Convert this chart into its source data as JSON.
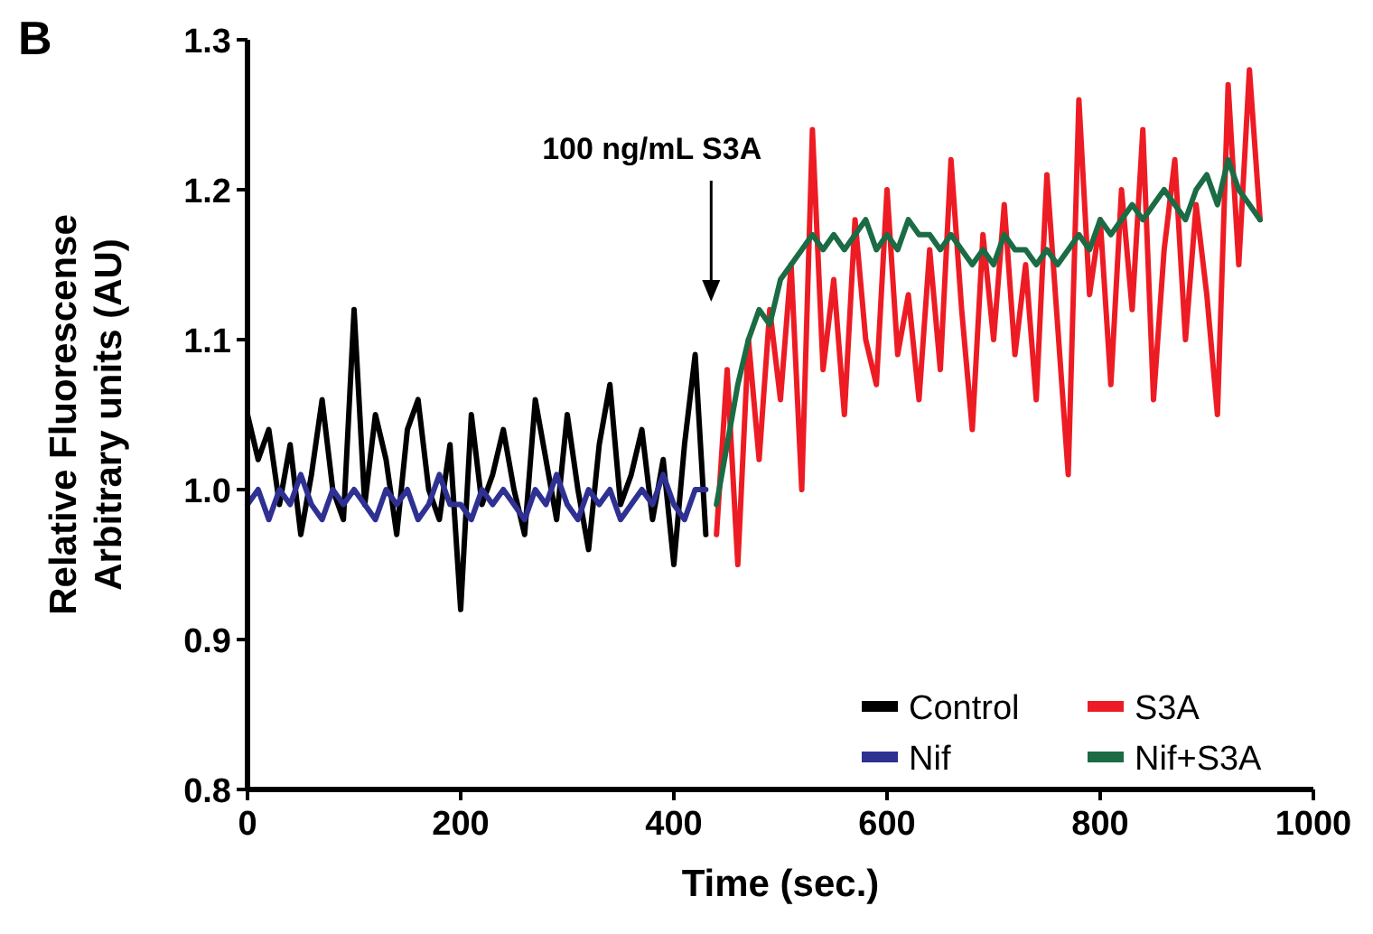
{
  "chart_data": {
    "type": "line",
    "xlabel": "Time (sec.)",
    "ylabel": "Relative Fluorescense\nArbitrary units (AU)",
    "xlim": [
      0,
      1000
    ],
    "ylim": [
      0.8,
      1.3
    ],
    "xticks": [
      0,
      200,
      400,
      600,
      800,
      1000
    ],
    "yticks": [
      {
        "value": 0.8,
        "label": "0.8"
      },
      {
        "value": 0.9,
        "label": "0.9"
      },
      {
        "value": 1.0,
        "label": "1.0"
      },
      {
        "value": 1.1,
        "label": "1.1"
      },
      {
        "value": 1.2,
        "label": "1.2"
      },
      {
        "value": 1.3,
        "label": "1.3"
      }
    ],
    "grid": false,
    "legend": "bottom right",
    "marker": "none",
    "line_style": "solid",
    "annotations": [
      "B",
      "100 ng/mL S3A"
    ],
    "series": [
      {
        "name": "Control",
        "color": "#000000",
        "x": [
          0,
          10,
          20,
          30,
          40,
          50,
          60,
          70,
          80,
          90,
          100,
          110,
          120,
          130,
          140,
          150,
          160,
          170,
          180,
          190,
          200,
          210,
          220,
          230,
          240,
          250,
          260,
          270,
          280,
          290,
          300,
          310,
          320,
          330,
          340,
          350,
          360,
          370,
          380,
          390,
          400,
          410,
          420,
          430
        ],
        "values": [
          1.05,
          1.02,
          1.04,
          0.99,
          1.03,
          0.97,
          1.01,
          1.06,
          1.0,
          0.98,
          1.12,
          0.99,
          1.05,
          1.02,
          0.97,
          1.04,
          1.06,
          1.0,
          0.98,
          1.03,
          0.92,
          1.05,
          0.99,
          1.01,
          1.04,
          1.0,
          0.97,
          1.06,
          1.02,
          0.98,
          1.05,
          1.0,
          0.96,
          1.03,
          1.07,
          0.99,
          1.01,
          1.04,
          0.98,
          1.02,
          0.95,
          1.03,
          1.09,
          0.97
        ]
      },
      {
        "name": "Nif",
        "color": "#2e3192",
        "x": [
          0,
          10,
          20,
          30,
          40,
          50,
          60,
          70,
          80,
          90,
          100,
          110,
          120,
          130,
          140,
          150,
          160,
          170,
          180,
          190,
          200,
          210,
          220,
          230,
          240,
          250,
          260,
          270,
          280,
          290,
          300,
          310,
          320,
          330,
          340,
          350,
          360,
          370,
          380,
          390,
          400,
          410,
          420,
          430
        ],
        "values": [
          0.99,
          1.0,
          0.98,
          1.0,
          0.99,
          1.01,
          0.99,
          0.98,
          1.0,
          0.99,
          1.0,
          0.99,
          0.98,
          1.0,
          0.99,
          1.0,
          0.98,
          0.99,
          1.01,
          0.99,
          0.99,
          0.98,
          1.0,
          0.99,
          1.0,
          0.99,
          0.98,
          1.0,
          0.99,
          1.01,
          0.99,
          0.98,
          1.0,
          0.99,
          1.0,
          0.98,
          0.99,
          1.0,
          0.99,
          1.01,
          0.99,
          0.98,
          1.0,
          1.0
        ]
      },
      {
        "name": "S3A",
        "color": "#ed1c24",
        "x": [
          440,
          450,
          460,
          470,
          480,
          490,
          500,
          510,
          520,
          530,
          540,
          550,
          560,
          570,
          580,
          590,
          600,
          610,
          620,
          630,
          640,
          650,
          660,
          670,
          680,
          690,
          700,
          710,
          720,
          730,
          740,
          750,
          760,
          770,
          780,
          790,
          800,
          810,
          820,
          830,
          840,
          850,
          860,
          870,
          880,
          890,
          900,
          910,
          920,
          930,
          940,
          950
        ],
        "values": [
          0.97,
          1.08,
          0.95,
          1.1,
          1.02,
          1.12,
          1.06,
          1.15,
          1.0,
          1.24,
          1.08,
          1.14,
          1.05,
          1.18,
          1.1,
          1.07,
          1.2,
          1.09,
          1.13,
          1.06,
          1.16,
          1.08,
          1.22,
          1.12,
          1.04,
          1.17,
          1.1,
          1.19,
          1.09,
          1.15,
          1.06,
          1.21,
          1.11,
          1.01,
          1.26,
          1.13,
          1.18,
          1.07,
          1.2,
          1.12,
          1.24,
          1.06,
          1.16,
          1.22,
          1.1,
          1.19,
          1.13,
          1.05,
          1.27,
          1.15,
          1.28,
          1.18
        ]
      },
      {
        "name": "Nif+S3A",
        "color": "#1b6b45",
        "x": [
          440,
          450,
          460,
          470,
          480,
          490,
          500,
          510,
          520,
          530,
          540,
          550,
          560,
          570,
          580,
          590,
          600,
          610,
          620,
          630,
          640,
          650,
          660,
          670,
          680,
          690,
          700,
          710,
          720,
          730,
          740,
          750,
          760,
          770,
          780,
          790,
          800,
          810,
          820,
          830,
          840,
          850,
          860,
          870,
          880,
          890,
          900,
          910,
          920,
          930,
          940,
          950
        ],
        "values": [
          0.99,
          1.03,
          1.07,
          1.1,
          1.12,
          1.11,
          1.14,
          1.15,
          1.16,
          1.17,
          1.16,
          1.17,
          1.16,
          1.17,
          1.18,
          1.16,
          1.17,
          1.16,
          1.18,
          1.17,
          1.17,
          1.16,
          1.17,
          1.16,
          1.15,
          1.16,
          1.15,
          1.17,
          1.16,
          1.16,
          1.15,
          1.16,
          1.15,
          1.16,
          1.17,
          1.16,
          1.18,
          1.17,
          1.18,
          1.19,
          1.18,
          1.19,
          1.2,
          1.19,
          1.18,
          1.2,
          1.21,
          1.19,
          1.22,
          1.2,
          1.19,
          1.18
        ]
      }
    ]
  }
}
